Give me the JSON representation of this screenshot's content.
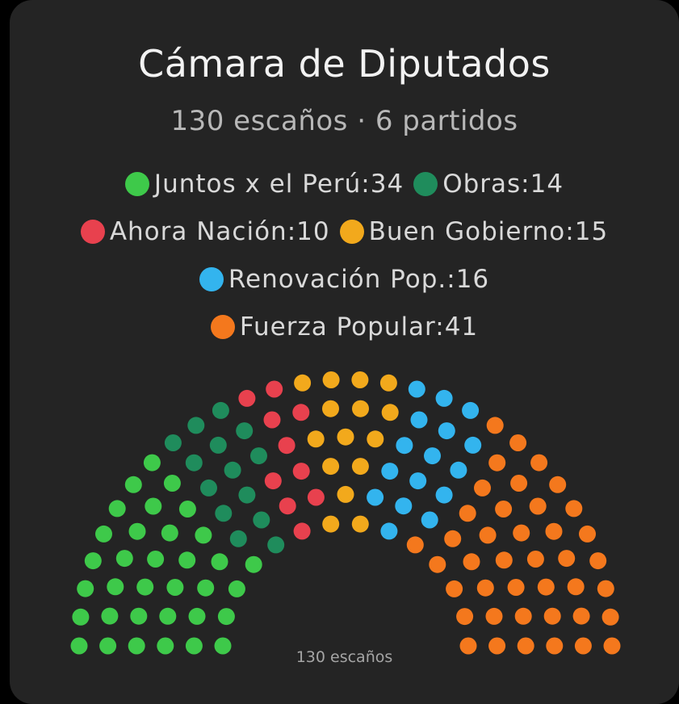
{
  "title": "Cámara de Diputados",
  "subtitle": "130 escaños · 6 partidos",
  "footer": "130 escaños",
  "legend_rows": [
    [
      0,
      1
    ],
    [
      2,
      3
    ],
    [
      4
    ],
    [
      5
    ]
  ],
  "chart_data": {
    "type": "parliament",
    "title": "Cámara de Diputados",
    "total_seats": 130,
    "series": [
      {
        "name": "Juntos x el Perú",
        "label": "Juntos x el Perú: ",
        "seats": 34,
        "color": "#3ec94a"
      },
      {
        "name": "Obras",
        "label": "Obras: ",
        "seats": 14,
        "color": "#1f8c5c"
      },
      {
        "name": "Ahora Nación",
        "label": "Ahora Nación: ",
        "seats": 10,
        "color": "#e8414e"
      },
      {
        "name": "Buen Gobierno",
        "label": "Buen Gobierno: ",
        "seats": 15,
        "color": "#f2a91c"
      },
      {
        "name": "Renovación Pop.",
        "label": "Renovación Pop.: ",
        "seats": 16,
        "color": "#33b4ee"
      },
      {
        "name": "Fuerza Popular",
        "label": "Fuerza Popular: ",
        "seats": 41,
        "color": "#f4781d"
      }
    ],
    "legend_placement": "top-center"
  }
}
